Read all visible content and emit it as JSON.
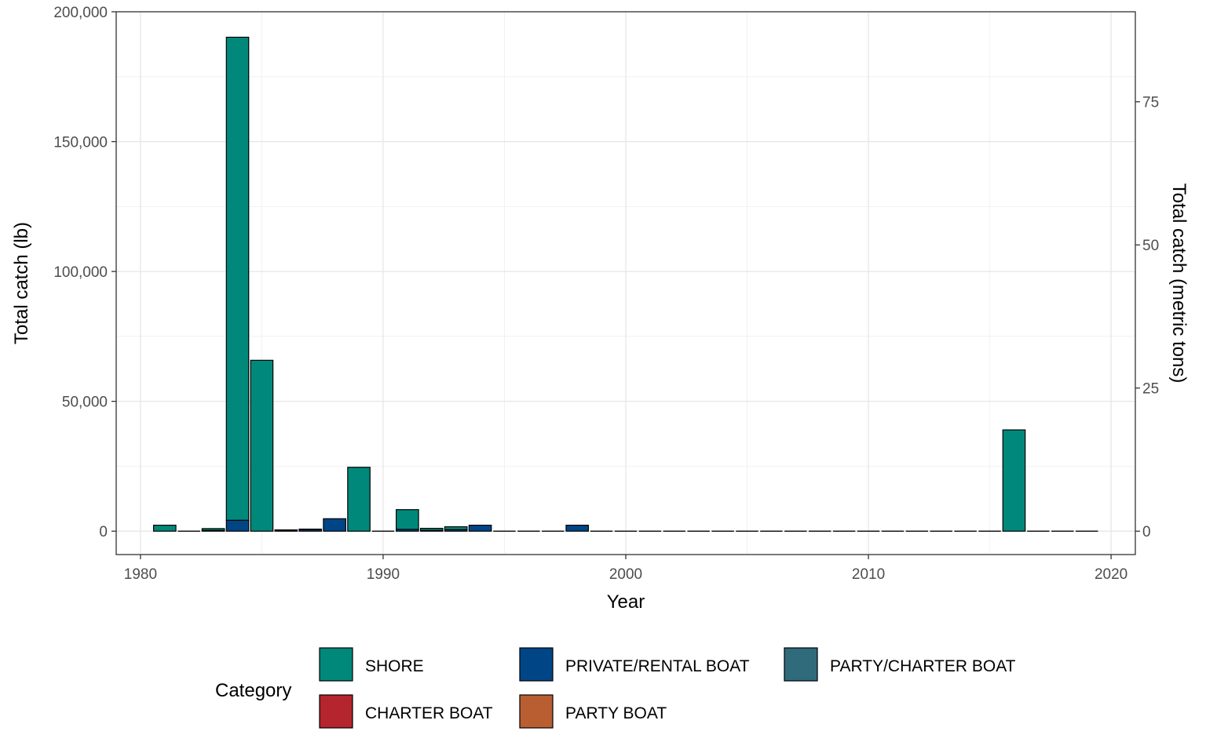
{
  "chart_data": {
    "type": "bar",
    "stacked": true,
    "xlabel": "Year",
    "ylabel": "Total catch (lb)",
    "ylabel_right": "Total catch (metric tons)",
    "xlim": [
      1979,
      2021
    ],
    "ylim": [
      -9000,
      200000
    ],
    "y2lim": [
      -4.08,
      90.72
    ],
    "x_ticks": [
      1980,
      1990,
      2000,
      2010,
      2020
    ],
    "y_ticks": [
      0,
      50000,
      100000,
      150000,
      200000
    ],
    "y_tick_labels": [
      "0",
      "50,000",
      "100,000",
      "150,000",
      "200,000"
    ],
    "y2_ticks": [
      0,
      25,
      50,
      75
    ],
    "y2_tick_labels": [
      "0",
      "25",
      "50",
      "75"
    ],
    "grid": true,
    "legend_position": "bottom",
    "legend_title": "Category",
    "x": [
      1981,
      1982,
      1983,
      1984,
      1985,
      1986,
      1987,
      1988,
      1989,
      1990,
      1991,
      1992,
      1993,
      1994,
      1995,
      1996,
      1997,
      1998,
      1999,
      2000,
      2001,
      2002,
      2003,
      2004,
      2005,
      2006,
      2007,
      2008,
      2009,
      2010,
      2011,
      2012,
      2013,
      2014,
      2015,
      2016,
      2017,
      2018,
      2019
    ],
    "series": [
      {
        "name": "SHORE",
        "color": "#00897B",
        "values": [
          2300,
          0,
          700,
          186000,
          65800,
          200,
          200,
          0,
          24600,
          0,
          7600,
          800,
          1100,
          0,
          0,
          0,
          0,
          0,
          0,
          0,
          0,
          0,
          0,
          0,
          0,
          0,
          0,
          0,
          0,
          0,
          0,
          0,
          0,
          0,
          0,
          39000,
          0,
          0,
          0
        ]
      },
      {
        "name": "PRIVATE/RENTAL BOAT",
        "color": "#004687",
        "values": [
          0,
          0,
          300,
          4200,
          0,
          300,
          600,
          4800,
          0,
          0,
          700,
          300,
          600,
          2300,
          0,
          0,
          0,
          2300,
          0,
          0,
          0,
          0,
          0,
          0,
          0,
          0,
          0,
          0,
          0,
          0,
          0,
          0,
          0,
          0,
          0,
          0,
          0,
          0,
          0
        ]
      },
      {
        "name": "PARTY/CHARTER BOAT",
        "color": "#306B7C",
        "values": [
          0,
          0,
          0,
          0,
          0,
          0,
          0,
          0,
          0,
          0,
          0,
          0,
          0,
          0,
          0,
          0,
          0,
          0,
          0,
          0,
          0,
          0,
          0,
          0,
          0,
          0,
          0,
          0,
          0,
          0,
          0,
          0,
          0,
          0,
          0,
          0,
          0,
          0,
          0
        ]
      },
      {
        "name": "CHARTER BOAT",
        "color": "#B5252D",
        "values": [
          0,
          0,
          0,
          0,
          0,
          0,
          0,
          0,
          0,
          0,
          0,
          0,
          0,
          0,
          0,
          0,
          0,
          0,
          0,
          0,
          0,
          0,
          0,
          0,
          0,
          0,
          0,
          0,
          0,
          0,
          0,
          0,
          0,
          0,
          0,
          0,
          0,
          0,
          0
        ]
      },
      {
        "name": "PARTY BOAT",
        "color": "#B85E31",
        "values": [
          0,
          0,
          0,
          0,
          0,
          0,
          0,
          0,
          0,
          0,
          0,
          0,
          0,
          0,
          0,
          0,
          0,
          0,
          0,
          0,
          0,
          0,
          0,
          0,
          0,
          0,
          0,
          0,
          0,
          0,
          0,
          0,
          0,
          0,
          0,
          0,
          0,
          0,
          0
        ]
      }
    ]
  }
}
